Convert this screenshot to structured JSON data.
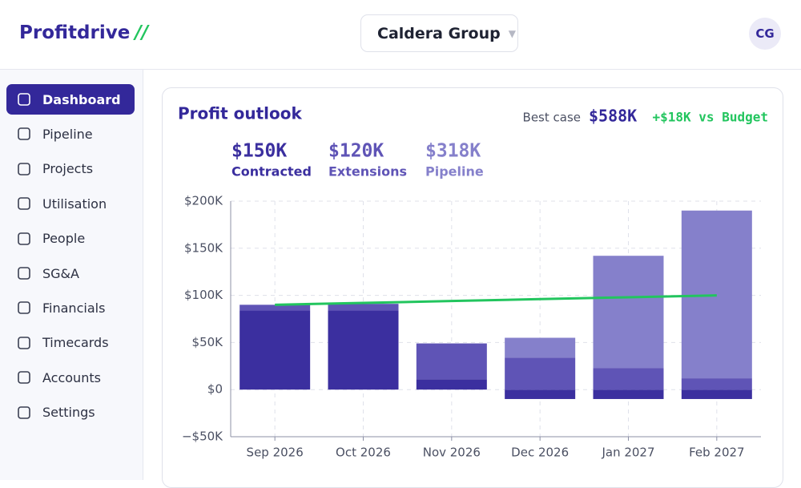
{
  "header": {
    "logo": "Profitdrive",
    "logo_mark": "//",
    "org": "Caldera Group",
    "avatar": "CG"
  },
  "nav": [
    "Dashboard",
    "Pipeline",
    "Projects",
    "Utilisation",
    "People",
    "SG&A",
    "Financials",
    "Timecards",
    "Accounts",
    "Settings"
  ],
  "card": {
    "title": "Profit outlook",
    "best_case_label": "Best case",
    "best_case_value": "$588K",
    "vs_budget": "+$18K vs Budget"
  },
  "chart_data": {
    "type": "stacked-bar",
    "categories": [
      "Sep 2026",
      "Oct 2026",
      "Nov 2026",
      "Dec 2026",
      "Jan 2027",
      "Feb 2027"
    ],
    "series": [
      {
        "name": "Contracted",
        "total": "$150K",
        "color": "#3b2f9f",
        "values": [
          84000,
          84000,
          11000,
          -10000,
          -10000,
          -10000
        ]
      },
      {
        "name": "Extensions",
        "total": "$120K",
        "color": "#5f54b6",
        "values": [
          6000,
          7000,
          38000,
          34000,
          23000,
          12000
        ]
      },
      {
        "name": "Pipeline",
        "total": "$318K",
        "color": "#8580cb",
        "values": [
          0,
          0,
          0,
          21000,
          119000,
          178000
        ]
      }
    ],
    "line": {
      "color": "#22c55e",
      "values": [
        90000,
        92000,
        94000,
        96000,
        98000,
        100000
      ]
    },
    "ylim": [
      -50000,
      200000
    ],
    "yticks": [
      {
        "value": -50000,
        "label": "−$50K"
      },
      {
        "value": 0,
        "label": "$0"
      },
      {
        "value": 50000,
        "label": "$50K"
      },
      {
        "value": 100000,
        "label": "$100K"
      },
      {
        "value": 150000,
        "label": "$150K"
      },
      {
        "value": 200000,
        "label": "$200K"
      }
    ],
    "grid": true
  }
}
